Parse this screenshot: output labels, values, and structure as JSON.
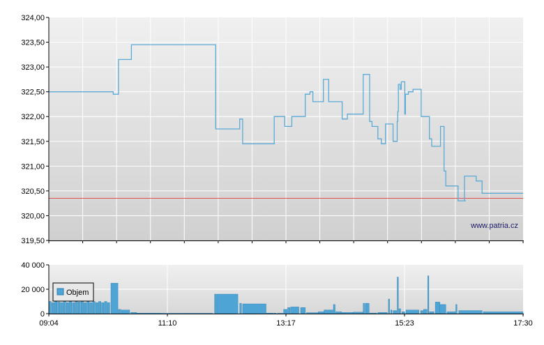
{
  "chart_data": [
    {
      "type": "line",
      "subtype": "step",
      "watermark": "www.patria.cz",
      "y_ticks": [
        "324,00",
        "323,50",
        "323,00",
        "322,50",
        "322,00",
        "321,50",
        "321,00",
        "320,50",
        "320,00",
        "319,50"
      ],
      "ylim": [
        319.5,
        324.0
      ],
      "reference_line": 320.35,
      "colors": {
        "price": "#5aa9d6",
        "reference": "#e05050",
        "grid": "#ffffff",
        "bg_top": "#efefef",
        "bg_bottom": "#d2d2d2"
      },
      "series": [
        {
          "x_minutes": [
            0,
            104,
            110,
            119,
            141,
            283,
            285,
            323,
            326,
            331,
            346,
            353,
            383,
            385,
            401,
            403,
            411,
            415,
            438,
            440,
            441,
            446,
            451,
            463,
            464,
            469,
            478,
            489,
            501,
            510,
            522,
            537,
            548,
            550,
            552,
            562,
            568,
            575,
            587,
            588,
            595,
            596,
            597,
            599,
            600,
            602,
            608,
            609,
            614,
            622,
            625,
            636,
            650,
            654,
            669,
            672,
            675,
            678,
            691,
            699,
            712,
            710,
            730,
            740,
            760,
            775,
            810
          ],
          "y": [
            322.5,
            322.5,
            322.45,
            323.15,
            323.45,
            323.45,
            321.75,
            321.75,
            321.95,
            321.45,
            321.45,
            321.45,
            321.45,
            322.0,
            322.0,
            321.8,
            321.8,
            322.0,
            322.45,
            322.45,
            322.45,
            322.5,
            322.3,
            322.3,
            322.3,
            322.75,
            322.3,
            322.3,
            321.95,
            322.05,
            322.05,
            322.85,
            321.9,
            321.9,
            321.8,
            321.55,
            321.45,
            321.85,
            321.85,
            321.5,
            321.9,
            322.1,
            322.65,
            322.65,
            322.55,
            322.7,
            322.05,
            322.45,
            322.5,
            322.55,
            322.55,
            322.0,
            321.55,
            321.4,
            321.8,
            321.8,
            320.9,
            320.6,
            320.6,
            320.3,
            320.3,
            320.8,
            320.7,
            320.45,
            320.45,
            320.45,
            320.45
          ]
        }
      ]
    },
    {
      "type": "bar",
      "legend": "Objem",
      "y_ticks": [
        "40 000",
        "20 000",
        "0"
      ],
      "ylim": [
        0,
        40000
      ],
      "x_ticks": [
        "09:04",
        "11:10",
        "13:17",
        "15:23",
        "17:30"
      ],
      "colors": {
        "bar": "#4ea4d4",
        "bar_edge": "#2a7fb0"
      },
      "series": [
        {
          "name": "Objem",
          "bars": [
            {
              "x": 0,
              "w": 4,
              "v": 10000
            },
            {
              "x": 5,
              "w": 4,
              "v": 9000
            },
            {
              "x": 10,
              "w": 4,
              "v": 10000
            },
            {
              "x": 15,
              "w": 4,
              "v": 9500
            },
            {
              "x": 20,
              "w": 4,
              "v": 9000
            },
            {
              "x": 25,
              "w": 4,
              "v": 10000
            },
            {
              "x": 30,
              "w": 4,
              "v": 9000
            },
            {
              "x": 35,
              "w": 4,
              "v": 10000
            },
            {
              "x": 40,
              "w": 4,
              "v": 9000
            },
            {
              "x": 45,
              "w": 4,
              "v": 10000
            },
            {
              "x": 50,
              "w": 4,
              "v": 9500
            },
            {
              "x": 55,
              "w": 4,
              "v": 10000
            },
            {
              "x": 60,
              "w": 4,
              "v": 9000
            },
            {
              "x": 65,
              "w": 4,
              "v": 10000
            },
            {
              "x": 70,
              "w": 4,
              "v": 9000
            },
            {
              "x": 75,
              "w": 4,
              "v": 10000
            },
            {
              "x": 80,
              "w": 4,
              "v": 9000
            },
            {
              "x": 85,
              "w": 4,
              "v": 10000
            },
            {
              "x": 90,
              "w": 4,
              "v": 9000
            },
            {
              "x": 95,
              "w": 4,
              "v": 10000
            },
            {
              "x": 100,
              "w": 4,
              "v": 9000
            },
            {
              "x": 106,
              "w": 12,
              "v": 25000
            },
            {
              "x": 119,
              "w": 4,
              "v": 3500
            },
            {
              "x": 124,
              "w": 14,
              "v": 3000
            },
            {
              "x": 140,
              "w": 10,
              "v": 1000
            },
            {
              "x": 150,
              "w": 40,
              "v": 400
            },
            {
              "x": 190,
              "w": 50,
              "v": 300
            },
            {
              "x": 240,
              "w": 40,
              "v": 300
            },
            {
              "x": 283,
              "w": 3,
              "v": 16000
            },
            {
              "x": 287,
              "w": 36,
              "v": 16000
            },
            {
              "x": 326,
              "w": 3,
              "v": 8500
            },
            {
              "x": 331,
              "w": 40,
              "v": 8000
            },
            {
              "x": 372,
              "w": 12,
              "v": 400
            },
            {
              "x": 385,
              "w": 3,
              "v": 400
            },
            {
              "x": 390,
              "w": 10,
              "v": 300
            },
            {
              "x": 401,
              "w": 6,
              "v": 3500
            },
            {
              "x": 408,
              "w": 4,
              "v": 5000
            },
            {
              "x": 413,
              "w": 14,
              "v": 5500
            },
            {
              "x": 430,
              "w": 8,
              "v": 5000
            },
            {
              "x": 440,
              "w": 20,
              "v": 800
            },
            {
              "x": 460,
              "w": 10,
              "v": 1500
            },
            {
              "x": 470,
              "w": 15,
              "v": 3000
            },
            {
              "x": 486,
              "w": 3,
              "v": 7500
            },
            {
              "x": 490,
              "w": 10,
              "v": 1500
            },
            {
              "x": 500,
              "w": 20,
              "v": 1000
            },
            {
              "x": 520,
              "w": 17,
              "v": 1200
            },
            {
              "x": 537,
              "w": 3,
              "v": 8500
            },
            {
              "x": 541,
              "w": 6,
              "v": 8500
            },
            {
              "x": 548,
              "w": 12,
              "v": 500
            },
            {
              "x": 562,
              "w": 16,
              "v": 1000
            },
            {
              "x": 580,
              "w": 2,
              "v": 12000
            },
            {
              "x": 584,
              "w": 2,
              "v": 3000
            },
            {
              "x": 588,
              "w": 6,
              "v": 2500
            },
            {
              "x": 595,
              "w": 2,
              "v": 30000
            },
            {
              "x": 598,
              "w": 3,
              "v": 4000
            },
            {
              "x": 603,
              "w": 5,
              "v": 1500
            },
            {
              "x": 610,
              "w": 22,
              "v": 3000
            },
            {
              "x": 635,
              "w": 4,
              "v": 2500
            },
            {
              "x": 640,
              "w": 6,
              "v": 3500
            },
            {
              "x": 647,
              "w": 2,
              "v": 31000
            },
            {
              "x": 650,
              "w": 8,
              "v": 1500
            },
            {
              "x": 660,
              "w": 8,
              "v": 9500
            },
            {
              "x": 668,
              "w": 10,
              "v": 7500
            },
            {
              "x": 680,
              "w": 14,
              "v": 1500
            },
            {
              "x": 695,
              "w": 2,
              "v": 7500
            },
            {
              "x": 700,
              "w": 40,
              "v": 2500
            },
            {
              "x": 742,
              "w": 68,
              "v": 1500
            }
          ]
        }
      ]
    }
  ]
}
